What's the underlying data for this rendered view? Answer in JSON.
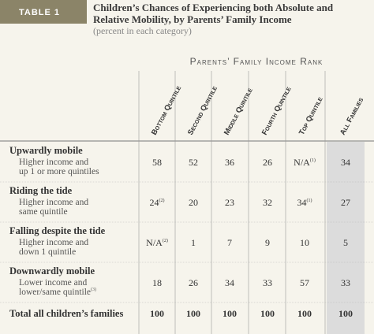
{
  "header": {
    "label": "TABLE 1",
    "title": [
      "Children’s Chances of Experiencing both Absolute and",
      "Relative Mobility, by Parents’ Family Income"
    ],
    "subtitle": "(percent in each category)"
  },
  "table": {
    "group_header": "Parents’ Family Income Rank",
    "columns": [
      "Bottom Quintile",
      "Second Quintile",
      "Middle Quintile",
      "Fourth Quintile",
      "Top Quintile",
      "All Families"
    ],
    "rows": [
      {
        "label": "Upwardly mobile",
        "description": [
          "Higher income and",
          "up 1 or more quintiles"
        ],
        "cells": [
          58,
          52,
          36,
          26,
          {
            "text": "N/A",
            "note": "(1)"
          },
          34
        ]
      },
      {
        "label": "Riding the tide",
        "description": [
          "Higher income and",
          "same quintile"
        ],
        "cells": [
          {
            "text": "24",
            "note": "(2)"
          },
          20,
          23,
          32,
          {
            "text": "34",
            "note": "(1)"
          },
          27
        ]
      },
      {
        "label": "Falling despite the tide",
        "description": [
          "Higher income and",
          "down 1 quintile"
        ],
        "cells": [
          {
            "text": "N/A",
            "note": "(2)"
          },
          1,
          7,
          9,
          10,
          5
        ]
      },
      {
        "label": "Downwardly mobile",
        "description": [
          "Lower income and",
          "lower/same quintile"
        ],
        "description_note": "(3)",
        "cells": [
          18,
          26,
          34,
          33,
          57,
          33
        ]
      }
    ],
    "total": {
      "label": "Total all children’s families",
      "cells": [
        100,
        100,
        100,
        100,
        100,
        100
      ]
    }
  }
}
